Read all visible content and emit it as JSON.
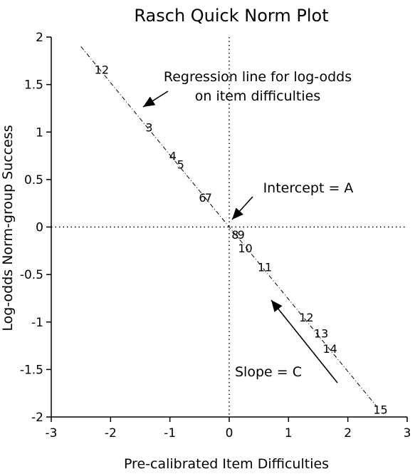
{
  "chart_data": {
    "type": "scatter",
    "title": "Rasch Quick Norm Plot",
    "xlabel": "Pre-calibrated Item Difficulties",
    "ylabel": "Log-odds Norm-group Success",
    "xlim": [
      -3,
      3
    ],
    "ylim": [
      -2,
      2
    ],
    "xticks": [
      -3,
      -2,
      -1,
      0,
      1,
      2,
      3
    ],
    "yticks": [
      -2,
      -1.5,
      -1,
      -0.5,
      0,
      0.5,
      1,
      1.5,
      2
    ],
    "grid": false,
    "reference_lines": {
      "x": 0,
      "y": 0,
      "style": "dotted"
    },
    "points": [
      {
        "label": "12",
        "x": -2.15,
        "y": 1.66
      },
      {
        "label": "3",
        "x": -1.35,
        "y": 1.05
      },
      {
        "label": "4",
        "x": -0.95,
        "y": 0.75
      },
      {
        "label": "5",
        "x": -0.82,
        "y": 0.66
      },
      {
        "label": "6",
        "x": -0.45,
        "y": 0.31
      },
      {
        "label": "7",
        "x": -0.35,
        "y": 0.31
      },
      {
        "label": "8",
        "x": 0.1,
        "y": -0.08
      },
      {
        "label": "9",
        "x": 0.2,
        "y": -0.08
      },
      {
        "label": "10",
        "x": 0.27,
        "y": -0.22
      },
      {
        "label": "11",
        "x": 0.6,
        "y": -0.42
      },
      {
        "label": "12",
        "x": 1.3,
        "y": -0.95
      },
      {
        "label": "13",
        "x": 1.55,
        "y": -1.12
      },
      {
        "label": "14",
        "x": 1.7,
        "y": -1.28
      },
      {
        "label": "15",
        "x": 2.55,
        "y": -1.92
      }
    ],
    "regression_line": {
      "x": [
        -2.5,
        2.5
      ],
      "y": [
        1.9,
        -1.9
      ],
      "style": "dash-dot"
    },
    "annotations": [
      {
        "text_lines": [
          "Regression line for log-odds",
          "on item difficulties"
        ]
      },
      {
        "text_lines": [
          "Intercept = A"
        ]
      },
      {
        "text_lines": [
          "Slope = C"
        ]
      }
    ]
  }
}
